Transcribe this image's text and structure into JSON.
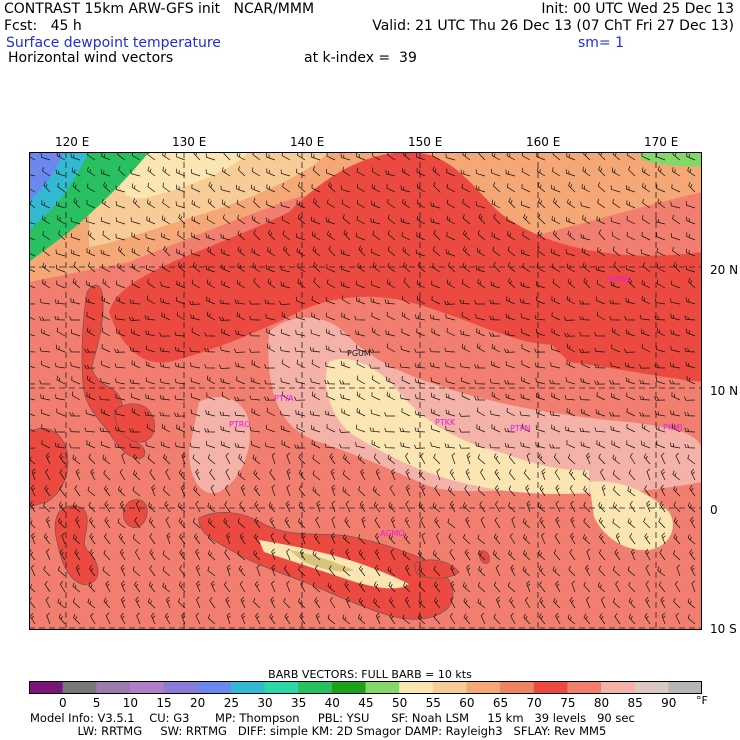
{
  "header": {
    "line1_left": "CONTRAST 15km ARW-GFS init   NCAR/MMM",
    "line1_right": "Init: 00 UTC Wed 25 Dec 13",
    "line2_left": "Fcst:   45 h",
    "line2_right": "Valid: 21 UTC Thu 26 Dec 13 (07 ChT Fri 27 Dec 13)",
    "field_title": "Surface dewpoint temperature",
    "smoothing": "sm= 1",
    "overlay_title": "Horizontal wind vectors",
    "level": "at k-index =  39"
  },
  "colors": {
    "header_blue": "#1f2dd6",
    "station_magenta": "#e020e0"
  },
  "map": {
    "lon_labels": [
      "120 E",
      "130 E",
      "140 E",
      "150 E",
      "160 E",
      "170 E"
    ],
    "lat_labels": [
      "20 N",
      "10 N",
      "0",
      "10 S"
    ],
    "stations": [
      {
        "id": "PWAK"
      },
      {
        "id": "PGUM"
      },
      {
        "id": "PTYA"
      },
      {
        "id": "PTRO"
      },
      {
        "id": "PTKK"
      },
      {
        "id": "PTPN"
      },
      {
        "id": "PKMJ"
      },
      {
        "id": "AGMO"
      }
    ]
  },
  "legend": {
    "barb_note": "BARB VECTORS:  FULL BARB = 10 kts",
    "unit": "°F",
    "ticks": [
      "0",
      "5",
      "10",
      "15",
      "20",
      "25",
      "30",
      "35",
      "40",
      "45",
      "50",
      "55",
      "60",
      "65",
      "70",
      "75",
      "80",
      "85",
      "90"
    ],
    "bins": [
      {
        "color": "#7a157a"
      },
      {
        "color": "#777777"
      },
      {
        "color": "#9c7aae"
      },
      {
        "color": "#b27ec8"
      },
      {
        "color": "#8c7cd8"
      },
      {
        "color": "#6a88ee"
      },
      {
        "color": "#34b9d2"
      },
      {
        "color": "#2ed7a6"
      },
      {
        "color": "#28c060"
      },
      {
        "color": "#1ca11c"
      },
      {
        "color": "#84d86a"
      },
      {
        "color": "#fbe5b2"
      },
      {
        "color": "#f8cc96"
      },
      {
        "color": "#f5a776"
      },
      {
        "color": "#f08462"
      },
      {
        "color": "#ec4a40"
      },
      {
        "color": "#f27e70"
      },
      {
        "color": "#f5b2a8"
      },
      {
        "color": "#dcc9c0"
      },
      {
        "color": "#b6b6b6"
      }
    ]
  },
  "model_info": {
    "line1": "Model Info: V3.5.1    CU: G3       MP: Thompson     PBL: YSU      SF: Noah LSM     15 km   39 levels   90 sec",
    "line2": "             LW: RRTMG     SW: RRTMG   DIFF: simple KM: 2D Smagor DAMP: Rayleigh3   SFLAY: Rev MM5"
  }
}
